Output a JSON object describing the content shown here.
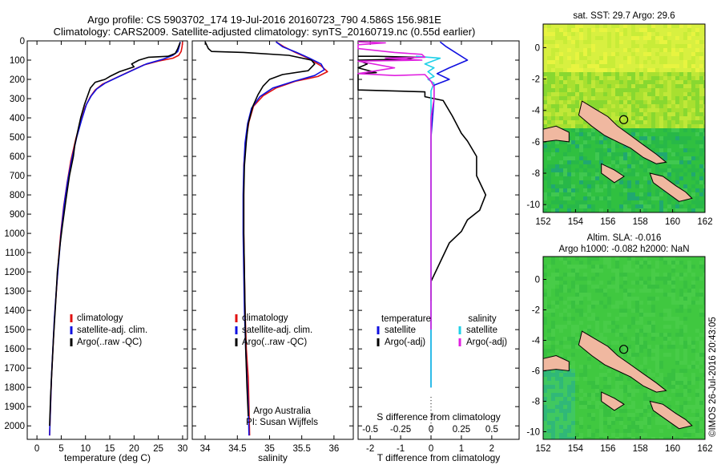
{
  "titles": {
    "line1": "Argo profile: CS 5903702_174 19-Jul-2016 20160723_790 4.586S 156.981E",
    "line2": "Climatology: CARS2009. Satellite-adjusted climatology: synTS_20160719.nc (0.55d earlier)"
  },
  "colors": {
    "climatology": "#e01010",
    "satellite": "#1010e0",
    "argo": "#000000",
    "sat_sal": "#20d0e8",
    "argo_sal": "#e020e0"
  },
  "depth_axis": {
    "ylim": [
      0,
      2070
    ],
    "ticks": [
      0,
      100,
      200,
      300,
      400,
      500,
      600,
      700,
      800,
      900,
      1000,
      1100,
      1200,
      1300,
      1400,
      1500,
      1600,
      1700,
      1800,
      1900,
      2000
    ]
  },
  "chart_data": [
    {
      "type": "line",
      "id": "temperature",
      "xlabel": "temperature (deg C)",
      "ylabel": "",
      "xlim": [
        -2,
        31
      ],
      "ylim": [
        0,
        2070
      ],
      "y_inverted": true,
      "xticks": [
        0,
        5,
        10,
        15,
        20,
        25,
        30
      ],
      "legend": [
        "climatology",
        "satellite-adj. clim.",
        "Argo(..raw -QC)"
      ],
      "legend_placement": "bottom-right",
      "series": [
        {
          "name": "climatology",
          "color": "#e01010",
          "points": [
            [
              30,
              5
            ],
            [
              29.9,
              30
            ],
            [
              29.7,
              55
            ],
            [
              29.2,
              75
            ],
            [
              28,
              90
            ],
            [
              25,
              105
            ],
            [
              22,
              125
            ],
            [
              19,
              160
            ],
            [
              16,
              195
            ],
            [
              13.5,
              225
            ],
            [
              12,
              255
            ],
            [
              11,
              290
            ],
            [
              10,
              340
            ],
            [
              9,
              420
            ],
            [
              8,
              510
            ],
            [
              7,
              620
            ],
            [
              6.2,
              740
            ],
            [
              5.5,
              860
            ],
            [
              4.9,
              1000
            ],
            [
              4.4,
              1150
            ],
            [
              4,
              1300
            ],
            [
              3.6,
              1450
            ],
            [
              3.3,
              1600
            ],
            [
              3,
              1750
            ],
            [
              2.8,
              1900
            ],
            [
              2.6,
              2050
            ]
          ]
        },
        {
          "name": "satellite-adj. clim.",
          "color": "#1010e0",
          "points": [
            [
              29.5,
              5
            ],
            [
              29.3,
              30
            ],
            [
              29,
              55
            ],
            [
              28,
              75
            ],
            [
              26,
              95
            ],
            [
              22.5,
              120
            ],
            [
              19.5,
              155
            ],
            [
              16.5,
              190
            ],
            [
              14,
              220
            ],
            [
              12.3,
              250
            ],
            [
              11.2,
              285
            ],
            [
              10.2,
              330
            ],
            [
              9.2,
              410
            ],
            [
              8.2,
              500
            ],
            [
              7.2,
              610
            ],
            [
              6.3,
              730
            ],
            [
              5.6,
              850
            ],
            [
              5,
              990
            ],
            [
              4.5,
              1140
            ],
            [
              4,
              1290
            ],
            [
              3.6,
              1440
            ],
            [
              3.3,
              1590
            ],
            [
              3,
              1740
            ],
            [
              2.8,
              1890
            ],
            [
              2.6,
              2050
            ]
          ]
        },
        {
          "name": "Argo(..raw -QC)",
          "color": "#000000",
          "points": [
            [
              29.5,
              8
            ],
            [
              29,
              40
            ],
            [
              28.5,
              65
            ],
            [
              27,
              80
            ],
            [
              23,
              85
            ],
            [
              21,
              100
            ],
            [
              19.5,
              120
            ],
            [
              20,
              135
            ],
            [
              17,
              160
            ],
            [
              15,
              185
            ],
            [
              14,
              200
            ],
            [
              12,
              215
            ],
            [
              11,
              245
            ],
            [
              10.5,
              280
            ],
            [
              9.8,
              330
            ],
            [
              9,
              400
            ],
            [
              8.4,
              470
            ],
            [
              7.8,
              540
            ],
            [
              7.5,
              600
            ],
            [
              6.7,
              700
            ],
            [
              6,
              820
            ],
            [
              5.2,
              970
            ],
            [
              4.8,
              1050
            ],
            [
              4.2,
              1200
            ],
            [
              3.8,
              1380
            ],
            [
              3.4,
              1550
            ],
            [
              3.1,
              1700
            ],
            [
              2.8,
              1850
            ],
            [
              2.6,
              2000
            ]
          ]
        }
      ]
    },
    {
      "type": "line",
      "id": "salinity",
      "xlabel": "salinity",
      "ylabel": "",
      "xlim": [
        33.8,
        36.3
      ],
      "ylim": [
        0,
        2070
      ],
      "y_inverted": true,
      "xticks": [
        34,
        34.5,
        35,
        35.5,
        36
      ],
      "legend": [
        "climatology",
        "satellite-adj. clim.",
        "Argo(..raw -QC)"
      ],
      "legend_placement": "bottom-right",
      "notes": [
        "Argo Australia",
        "PI: Susan Wijffels"
      ],
      "series": [
        {
          "name": "climatology",
          "color": "#e01010",
          "points": [
            [
              35.1,
              5
            ],
            [
              35.22,
              30
            ],
            [
              35.4,
              60
            ],
            [
              35.6,
              90
            ],
            [
              35.8,
              130
            ],
            [
              35.9,
              160
            ],
            [
              35.75,
              185
            ],
            [
              35.4,
              210
            ],
            [
              35.1,
              245
            ],
            [
              34.9,
              285
            ],
            [
              34.75,
              340
            ],
            [
              34.68,
              420
            ],
            [
              34.63,
              520
            ],
            [
              34.6,
              650
            ],
            [
              34.6,
              800
            ],
            [
              34.6,
              1000
            ],
            [
              34.61,
              1200
            ],
            [
              34.62,
              1400
            ],
            [
              34.64,
              1600
            ],
            [
              34.67,
              1750
            ],
            [
              34.68,
              1900
            ],
            [
              34.69,
              2050
            ]
          ]
        },
        {
          "name": "satellite-adj. clim.",
          "color": "#1010e0",
          "points": [
            [
              35.1,
              5
            ],
            [
              35.2,
              30
            ],
            [
              35.42,
              60
            ],
            [
              35.62,
              90
            ],
            [
              35.8,
              120
            ],
            [
              35.85,
              150
            ],
            [
              35.7,
              180
            ],
            [
              35.38,
              210
            ],
            [
              35.05,
              245
            ],
            [
              34.85,
              290
            ],
            [
              34.72,
              350
            ],
            [
              34.66,
              430
            ],
            [
              34.62,
              530
            ],
            [
              34.6,
              660
            ],
            [
              34.59,
              800
            ],
            [
              34.59,
              1000
            ],
            [
              34.6,
              1200
            ],
            [
              34.61,
              1400
            ],
            [
              34.63,
              1600
            ],
            [
              34.65,
              1750
            ],
            [
              34.67,
              1900
            ],
            [
              34.68,
              2050
            ]
          ]
        },
        {
          "name": "Argo(..raw -QC)",
          "color": "#000000",
          "points": [
            [
              34.0,
              5
            ],
            [
              34.05,
              40
            ],
            [
              34.1,
              55
            ],
            [
              34.6,
              60
            ],
            [
              35.3,
              75
            ],
            [
              35.65,
              100
            ],
            [
              35.7,
              120
            ],
            [
              35.6,
              155
            ],
            [
              35.2,
              175
            ],
            [
              35.0,
              200
            ],
            [
              34.9,
              235
            ],
            [
              34.82,
              280
            ],
            [
              34.74,
              340
            ],
            [
              34.67,
              430
            ],
            [
              34.64,
              520
            ],
            [
              34.61,
              650
            ],
            [
              34.6,
              800
            ],
            [
              34.6,
              1000
            ],
            [
              34.61,
              1200
            ],
            [
              34.62,
              1400
            ],
            [
              34.63,
              1600
            ],
            [
              34.65,
              1800
            ],
            [
              34.67,
              1950
            ]
          ]
        }
      ]
    },
    {
      "type": "line",
      "id": "differences",
      "xlabel": "T difference from climatology",
      "xlabel_top": "S difference from climatology",
      "xlim": [
        -2.4,
        2.9
      ],
      "ylim": [
        0,
        2070
      ],
      "y_inverted": true,
      "xticks": [
        -2,
        -1,
        0,
        1,
        2
      ],
      "xticks_top": [
        "-0.5",
        "-0.25",
        "0",
        "0.25",
        "0.5"
      ],
      "legend_groups": {
        "temperature": [
          "satellite",
          "Argo(-adj)"
        ],
        "salinity": [
          "satellite",
          "Argo(-adj)"
        ]
      },
      "legend_headers": [
        "temperature",
        "salinity"
      ],
      "series": [
        {
          "name": "temperature satellite",
          "color": "#1010e0",
          "points": [
            [
              0.3,
              5
            ],
            [
              0.5,
              30
            ],
            [
              0.8,
              60
            ],
            [
              1.2,
              100
            ],
            [
              0.6,
              140
            ],
            [
              0.2,
              170
            ],
            [
              0.6,
              200
            ],
            [
              0.1,
              230
            ],
            [
              0.1,
              300
            ],
            [
              0,
              500
            ],
            [
              0,
              800
            ],
            [
              0,
              1100
            ],
            [
              0,
              1400
            ],
            [
              0,
              1700
            ],
            [
              0,
              1800
            ]
          ]
        },
        {
          "name": "temperature Argo(-adj)",
          "color": "#000000",
          "points": [
            [
              -2.4,
              80
            ],
            [
              -1.8,
              80
            ],
            [
              -0.5,
              85
            ],
            [
              -0.8,
              95
            ],
            [
              -2.4,
              100
            ],
            [
              -2.1,
              120
            ],
            [
              -2.4,
              140
            ],
            [
              -1.8,
              165
            ],
            [
              -2.4,
              170
            ],
            [
              -2.4,
              255
            ],
            [
              -0.2,
              265
            ],
            [
              -0.2,
              290
            ],
            [
              0.4,
              310
            ],
            [
              0.7,
              390
            ],
            [
              1.0,
              480
            ],
            [
              1.2,
              520
            ],
            [
              1.5,
              600
            ],
            [
              1.5,
              700
            ],
            [
              1.8,
              800
            ],
            [
              1.6,
              880
            ],
            [
              1.2,
              930
            ],
            [
              1.0,
              990
            ],
            [
              0.6,
              1050
            ],
            [
              0.3,
              1150
            ],
            [
              0,
              1250
            ],
            [
              0,
              1350
            ]
          ]
        },
        {
          "name": "salinity satellite",
          "color": "#20d0e8",
          "points": [
            [
              -0.5,
              80
            ],
            [
              0.3,
              90
            ],
            [
              -0.2,
              120
            ],
            [
              0.1,
              140
            ],
            [
              -0.1,
              160
            ],
            [
              0.1,
              185
            ],
            [
              -0.1,
              200
            ],
            [
              0.1,
              220
            ],
            [
              0,
              260
            ],
            [
              0,
              400
            ],
            [
              0,
              800
            ],
            [
              0,
              1200
            ],
            [
              0,
              1500
            ],
            [
              0,
              1800
            ]
          ]
        },
        {
          "name": "salinity Argo(-adj)",
          "color": "#e020e0",
          "points": [
            [
              -2.4,
              5
            ],
            [
              -1.5,
              10
            ],
            [
              -2.4,
              20
            ],
            [
              -2.4,
              40
            ],
            [
              -1.2,
              60
            ],
            [
              -0.3,
              70
            ],
            [
              -0.2,
              85
            ],
            [
              -1.5,
              90
            ],
            [
              -0.3,
              100
            ],
            [
              -2.4,
              105
            ],
            [
              -1.2,
              140
            ],
            [
              -2.4,
              170
            ],
            [
              -1.2,
              180
            ],
            [
              -0.2,
              175
            ],
            [
              0,
              210
            ],
            [
              0.1,
              240
            ],
            [
              0.1,
              300
            ],
            [
              0,
              400
            ],
            [
              0,
              600
            ],
            [
              0,
              900
            ],
            [
              0,
              1200
            ],
            [
              0,
              1400
            ],
            [
              0,
              1500
            ]
          ]
        }
      ]
    },
    {
      "type": "heatmap",
      "id": "sst-map",
      "title": "sat. SST: 29.7 Argo: 29.6",
      "xlim": [
        152,
        162
      ],
      "ylim": [
        -10.5,
        1.5
      ],
      "xticks": [
        152,
        154,
        156,
        158,
        160,
        162
      ],
      "yticks": [
        0,
        -2,
        -4,
        -6,
        -8,
        -10
      ],
      "profile_location": [
        156.98,
        -4.59
      ]
    },
    {
      "type": "heatmap",
      "id": "sla-map",
      "title": [
        "Altim. SLA: -0.016",
        "Argo h1000: -0.082 h2000: NaN"
      ],
      "xlim": [
        152,
        162
      ],
      "ylim": [
        -10.5,
        1.5
      ],
      "xticks": [
        152,
        154,
        156,
        158,
        160,
        162
      ],
      "yticks": [
        0,
        -2,
        -4,
        -6,
        -8,
        -10
      ],
      "profile_location": [
        156.98,
        -4.59
      ]
    }
  ],
  "footer": {
    "stamp": "©IMOS 26-Jul-2016 20:43:05"
  }
}
